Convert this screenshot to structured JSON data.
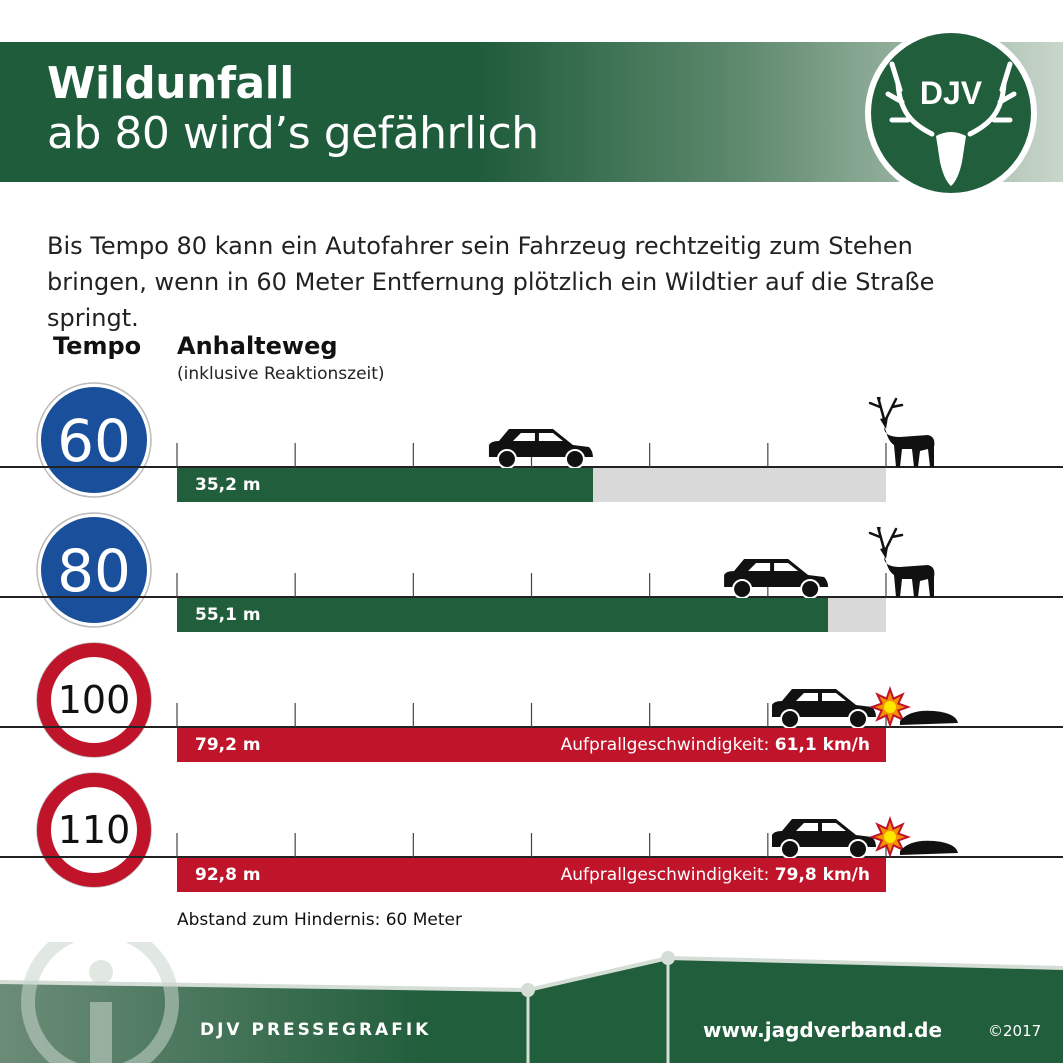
{
  "header": {
    "title_line1": "Wildunfall",
    "title_line2": "ab 80 wird’s gefährlich",
    "logo_text": "DJV"
  },
  "intro": "Bis Tempo 80 kann ein Autofahrer sein Fahrzeug rechtzeitig zum Stehen bringen, wenn in 60 Meter Entfernung plötzlich ein Wildtier auf die Straße springt.",
  "column_headers": {
    "tempo": "Tempo",
    "anhalteweg": "Anhalteweg",
    "anhalteweg_sub": "(inklusive Reaktionszeit)"
  },
  "rows": [
    {
      "speed": "60",
      "sign": "blue",
      "distance_label": "35,2 m",
      "distance_m": 35.2,
      "impact_label": "",
      "impact_value": ""
    },
    {
      "speed": "80",
      "sign": "blue",
      "distance_label": "55,1 m",
      "distance_m": 55.1,
      "impact_label": "",
      "impact_value": ""
    },
    {
      "speed": "100",
      "sign": "red",
      "distance_label": "79,2 m",
      "distance_m": 79.2,
      "impact_label": "Aufprallgeschwindigkeit:",
      "impact_value": "61,1 km/h"
    },
    {
      "speed": "110",
      "sign": "red",
      "distance_label": "92,8 m",
      "distance_m": 92.8,
      "impact_label": "Aufprallgeschwindigkeit:",
      "impact_value": "79,8 km/h"
    }
  ],
  "obstacle_distance_m": 60,
  "footnote": "Abstand zum Hindernis: 60 Meter",
  "footer": {
    "label": "DJV PRESSEGRAFIK",
    "url": "www.jagdverband.de",
    "copyright": "©2017"
  },
  "colors": {
    "green": "#215e3c",
    "blue": "#1a4f9c",
    "red": "#c0142a",
    "gray": "#d9d9d9"
  }
}
